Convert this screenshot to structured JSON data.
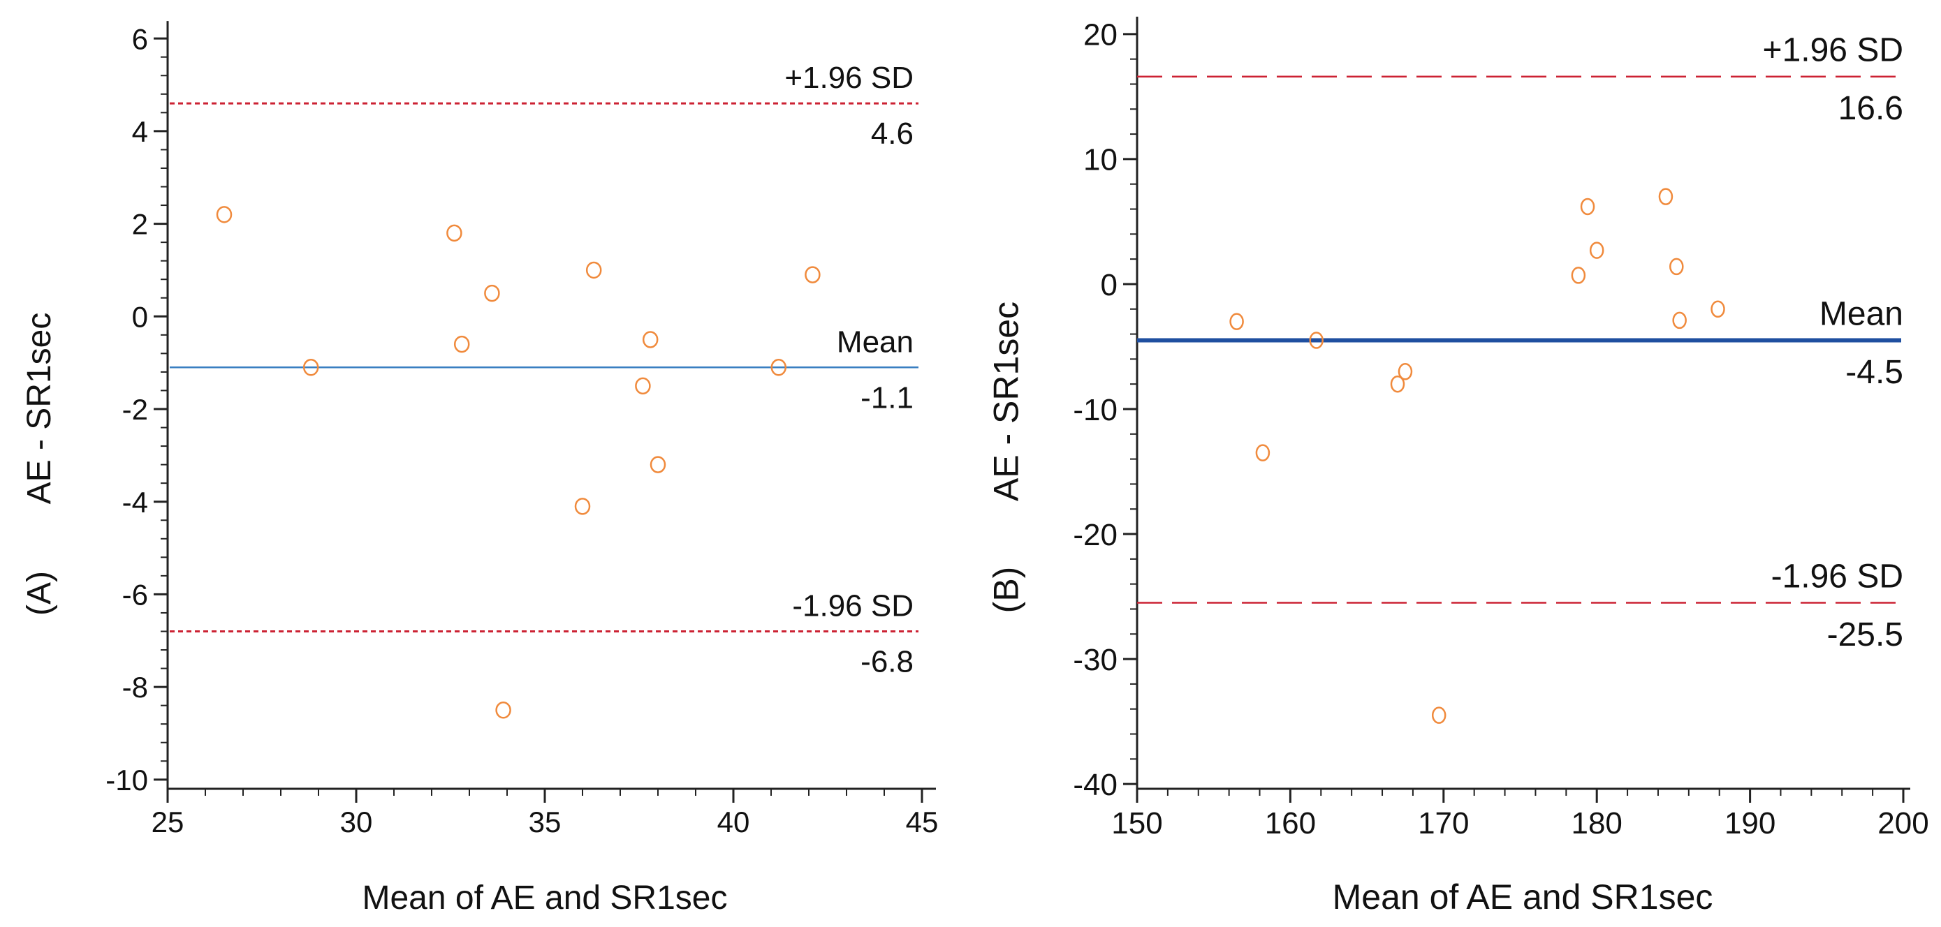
{
  "chart_data": [
    {
      "type": "scatter",
      "panel_label": "(A)",
      "title": "",
      "xlabel": "Mean of AE and SR1sec",
      "ylabel": "AE - SR1sec",
      "xlim": [
        25,
        45
      ],
      "ylim": [
        -10.5,
        6.5
      ],
      "x_ticks": [
        25,
        30,
        35,
        40,
        45
      ],
      "y_ticks": [
        -10,
        -8,
        -6,
        -4,
        -2,
        0,
        2,
        4,
        6
      ],
      "points": [
        {
          "x": 26.5,
          "y": 2.2
        },
        {
          "x": 28.8,
          "y": -1.1
        },
        {
          "x": 32.6,
          "y": 1.8
        },
        {
          "x": 32.8,
          "y": -0.6
        },
        {
          "x": 33.6,
          "y": 0.5
        },
        {
          "x": 33.9,
          "y": -8.5
        },
        {
          "x": 36.0,
          "y": -4.1
        },
        {
          "x": 36.3,
          "y": 1.0
        },
        {
          "x": 37.6,
          "y": -1.5
        },
        {
          "x": 37.8,
          "y": -0.5
        },
        {
          "x": 38.0,
          "y": -3.2
        },
        {
          "x": 41.2,
          "y": -1.1
        },
        {
          "x": 42.1,
          "y": 0.9
        }
      ],
      "reference_lines": [
        {
          "kind": "upper",
          "label": "+1.96 SD",
          "value": 4.6,
          "value_text": "4.6",
          "color": "#cc2233",
          "style": "dashed-fine"
        },
        {
          "kind": "mean",
          "label": "Mean",
          "value": -1.1,
          "value_text": "-1.1",
          "color": "#3a7fc1",
          "style": "solid-thin"
        },
        {
          "kind": "lower",
          "label": "-1.96 SD",
          "value": -6.8,
          "value_text": "-6.8",
          "color": "#cc2233",
          "style": "dashed-fine"
        }
      ],
      "marker_color": "#f08a3c"
    },
    {
      "type": "scatter",
      "panel_label": "(B)",
      "title": "",
      "xlabel": "Mean of AE and SR1sec",
      "ylabel": "AE - SR1sec",
      "xlim": [
        150,
        200
      ],
      "ylim": [
        -41.5,
        21.5
      ],
      "x_ticks": [
        150,
        160,
        170,
        180,
        190,
        200
      ],
      "y_ticks": [
        -40,
        -30,
        -20,
        -10,
        0,
        10,
        20
      ],
      "points": [
        {
          "x": 156.5,
          "y": -3.0
        },
        {
          "x": 158.2,
          "y": -13.5
        },
        {
          "x": 161.7,
          "y": -4.5
        },
        {
          "x": 167.0,
          "y": -8.0
        },
        {
          "x": 167.5,
          "y": -7.0
        },
        {
          "x": 169.7,
          "y": -34.5
        },
        {
          "x": 178.8,
          "y": 0.7
        },
        {
          "x": 179.4,
          "y": 6.2
        },
        {
          "x": 180.0,
          "y": 2.7
        },
        {
          "x": 184.5,
          "y": 7.0
        },
        {
          "x": 185.2,
          "y": 1.4
        },
        {
          "x": 185.4,
          "y": -2.9
        },
        {
          "x": 187.9,
          "y": -2.0
        }
      ],
      "reference_lines": [
        {
          "kind": "upper",
          "label": "+1.96 SD",
          "value": 16.6,
          "value_text": "16.6",
          "color": "#cc2233",
          "style": "dashed-long"
        },
        {
          "kind": "mean",
          "label": "Mean",
          "value": -4.5,
          "value_text": "-4.5",
          "color": "#1f4fa0",
          "style": "solid-thick"
        },
        {
          "kind": "lower",
          "label": "-1.96 SD",
          "value": -25.5,
          "value_text": "-25.5",
          "color": "#cc2233",
          "style": "dashed-long"
        }
      ],
      "marker_color": "#f08a3c"
    }
  ]
}
